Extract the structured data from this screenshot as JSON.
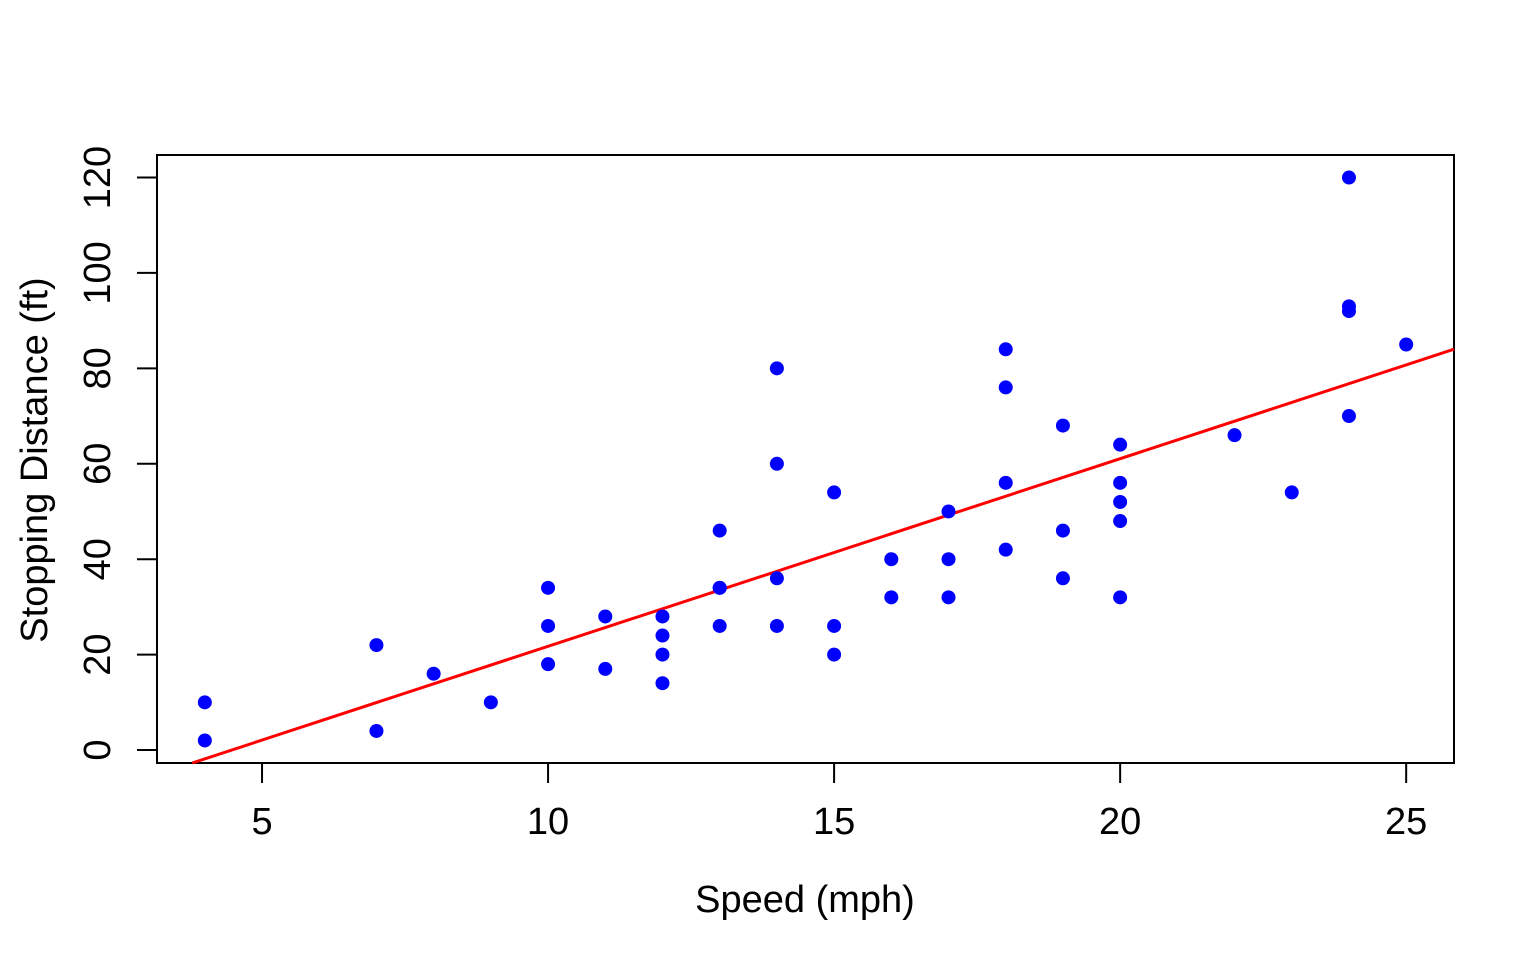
{
  "figure": {
    "background_color": "#ffffff"
  },
  "chart_data": {
    "type": "scatter",
    "title": "",
    "xlabel": "Speed (mph)",
    "ylabel": "Stopping Distance (ft)",
    "x_ticks": [
      5,
      10,
      15,
      20,
      25
    ],
    "y_ticks": [
      0,
      20,
      40,
      60,
      80,
      100,
      120
    ],
    "xlim": [
      3.164,
      25.836
    ],
    "ylim": [
      -2.72,
      124.72
    ],
    "grid": false,
    "legend": "none",
    "point_color": "#0000ff",
    "line_color": "#ff0000",
    "axis_color": "#000000",
    "points": [
      [
        4,
        2
      ],
      [
        4,
        10
      ],
      [
        7,
        4
      ],
      [
        7,
        22
      ],
      [
        8,
        16
      ],
      [
        9,
        10
      ],
      [
        10,
        18
      ],
      [
        10,
        26
      ],
      [
        10,
        34
      ],
      [
        11,
        17
      ],
      [
        11,
        28
      ],
      [
        12,
        14
      ],
      [
        12,
        20
      ],
      [
        12,
        24
      ],
      [
        12,
        28
      ],
      [
        13,
        26
      ],
      [
        13,
        34
      ],
      [
        13,
        34
      ],
      [
        13,
        46
      ],
      [
        14,
        26
      ],
      [
        14,
        36
      ],
      [
        14,
        60
      ],
      [
        14,
        80
      ],
      [
        15,
        20
      ],
      [
        15,
        26
      ],
      [
        15,
        54
      ],
      [
        16,
        32
      ],
      [
        16,
        40
      ],
      [
        17,
        32
      ],
      [
        17,
        40
      ],
      [
        17,
        50
      ],
      [
        18,
        42
      ],
      [
        18,
        56
      ],
      [
        18,
        76
      ],
      [
        18,
        84
      ],
      [
        19,
        36
      ],
      [
        19,
        46
      ],
      [
        19,
        68
      ],
      [
        20,
        32
      ],
      [
        20,
        48
      ],
      [
        20,
        52
      ],
      [
        20,
        56
      ],
      [
        20,
        64
      ],
      [
        22,
        66
      ],
      [
        23,
        54
      ],
      [
        24,
        70
      ],
      [
        24,
        92
      ],
      [
        24,
        93
      ],
      [
        24,
        120
      ],
      [
        25,
        85
      ]
    ],
    "regression_line": {
      "intercept": -17.579,
      "slope": 3.932
    }
  }
}
